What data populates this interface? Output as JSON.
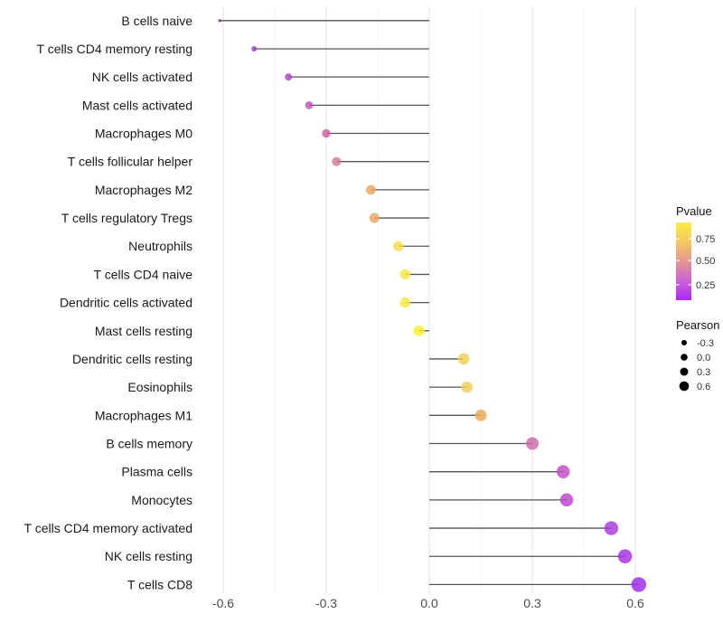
{
  "chart_data": {
    "type": "lollipop",
    "title": "",
    "xlabel": "",
    "ylabel": "",
    "grid": true,
    "xlim": [
      -0.67,
      0.67
    ],
    "x_axis": {
      "ticks": [
        {
          "label": "-0.6",
          "value": -0.6
        },
        {
          "label": "-0.3",
          "value": -0.3
        },
        {
          "label": "0.0",
          "value": 0.0
        },
        {
          "label": "0.3",
          "value": 0.3
        },
        {
          "label": "0.6",
          "value": 0.6
        }
      ],
      "minor": [
        -0.45,
        -0.15,
        0.15,
        0.45
      ]
    },
    "rows": [
      {
        "label": "B cells naive",
        "pearson": -0.61,
        "dot_color": "#7b2ba8",
        "dot_radius": 1.7
      },
      {
        "label": "T cells CD4 memory resting",
        "pearson": -0.51,
        "dot_color": "#9539c6",
        "dot_radius": 3.0
      },
      {
        "label": "NK cells activated",
        "pearson": -0.41,
        "dot_color": "#ac46c6",
        "dot_radius": 4.0
      },
      {
        "label": "Mast cells activated",
        "pearson": -0.35,
        "dot_color": "#c053b4",
        "dot_radius": 4.4
      },
      {
        "label": "Macrophages M0",
        "pearson": -0.3,
        "dot_color": "#ca60a2",
        "dot_radius": 4.8
      },
      {
        "label": "T cells follicular helper",
        "pearson": -0.27,
        "dot_color": "#d57b91",
        "dot_radius": 5.1
      },
      {
        "label": "Macrophages M2",
        "pearson": -0.17,
        "dot_color": "#eda75c",
        "dot_radius": 5.4
      },
      {
        "label": "T cells regulatory  Tregs",
        "pearson": -0.16,
        "dot_color": "#eba65e",
        "dot_radius": 5.5
      },
      {
        "label": "Neutrophils",
        "pearson": -0.09,
        "dot_color": "#f4df4d",
        "dot_radius": 5.7
      },
      {
        "label": "T cells CD4 naive",
        "pearson": -0.07,
        "dot_color": "#f6e63f",
        "dot_radius": 5.8
      },
      {
        "label": "Dendritic cells activated",
        "pearson": -0.07,
        "dot_color": "#f6e63f",
        "dot_radius": 5.8
      },
      {
        "label": "Mast cells resting",
        "pearson": -0.03,
        "dot_color": "#fbf224",
        "dot_radius": 6.0
      },
      {
        "label": "Dendritic cells resting",
        "pearson": 0.1,
        "dot_color": "#f3ce52",
        "dot_radius": 6.3
      },
      {
        "label": "Eosinophils",
        "pearson": 0.11,
        "dot_color": "#f3ce52",
        "dot_radius": 6.3
      },
      {
        "label": "Macrophages M1",
        "pearson": 0.15,
        "dot_color": "#eca854",
        "dot_radius": 6.5
      },
      {
        "label": "B cells memory",
        "pearson": 0.3,
        "dot_color": "#ce67ac",
        "dot_radius": 7.0
      },
      {
        "label": "Plasma cells",
        "pearson": 0.39,
        "dot_color": "#bf4bc3",
        "dot_radius": 7.3
      },
      {
        "label": "Monocytes",
        "pearson": 0.4,
        "dot_color": "#bb46cb",
        "dot_radius": 7.3
      },
      {
        "label": "T cells CD4 memory activated",
        "pearson": 0.53,
        "dot_color": "#a937db",
        "dot_radius": 7.7
      },
      {
        "label": "NK cells resting",
        "pearson": 0.57,
        "dot_color": "#a22fe3",
        "dot_radius": 7.8
      },
      {
        "label": "T cells CD8",
        "pearson": 0.61,
        "dot_color": "#9c27e8",
        "dot_radius": 8.2
      }
    ],
    "legend": {
      "pvalue": {
        "title": "Pvalue",
        "tick_labels": [
          "0.75",
          "0.50",
          "0.25"
        ],
        "gradient": [
          "#faef44",
          "#f4c861",
          "#e4978f",
          "#cb62d8",
          "#af27f2"
        ]
      },
      "pearson": {
        "title": "Pearson",
        "dot_color": "#000000",
        "sizes": [
          {
            "label": "-0.3",
            "r": 3.0
          },
          {
            "label": "0.0",
            "r": 3.8
          },
          {
            "label": "0.3",
            "r": 4.5
          },
          {
            "label": "0.6",
            "r": 5.3
          }
        ]
      }
    },
    "theme": {
      "background": "#ffffff",
      "stem_color": "#555555",
      "grid_major": "#e3e3e3",
      "grid_minor": "#f0f0f0",
      "label_color": "#1a1a1a",
      "tick_color": "#4d4d4d"
    }
  }
}
